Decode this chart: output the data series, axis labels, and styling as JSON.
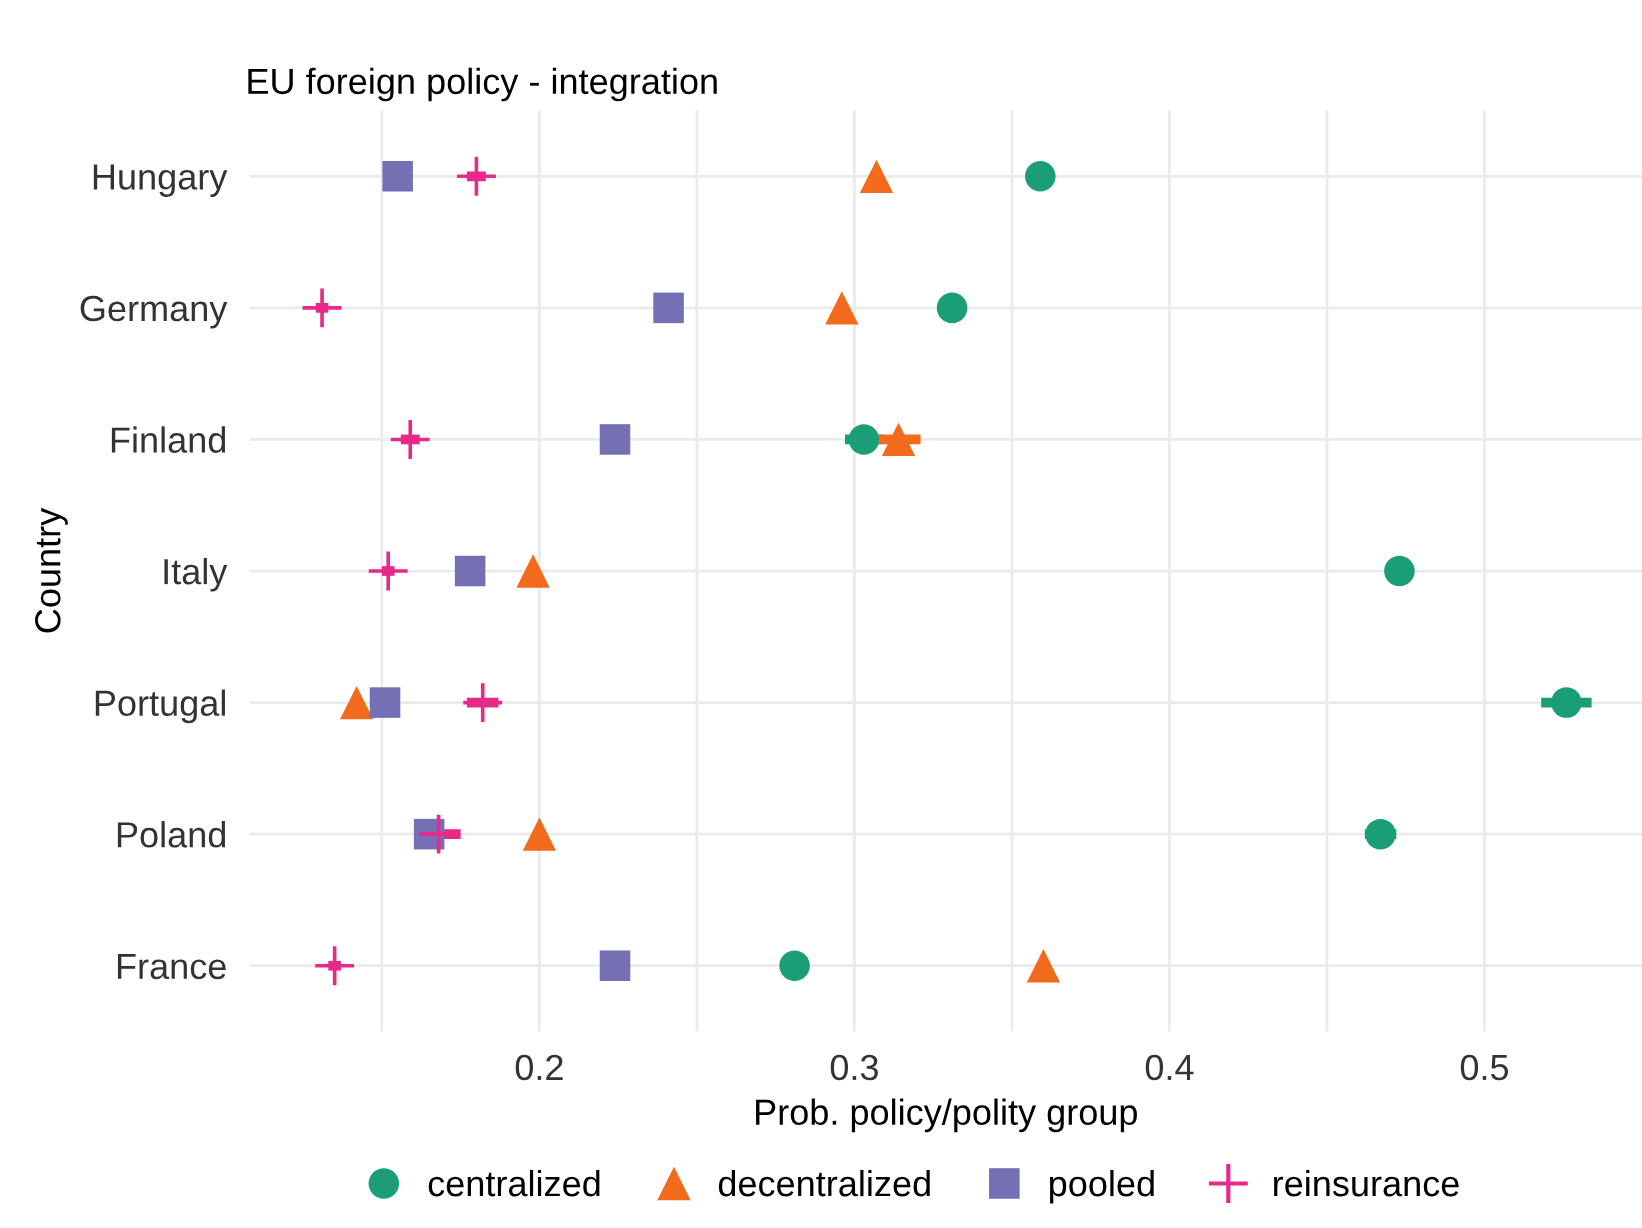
{
  "chart_data": {
    "type": "scatter",
    "title": "EU foreign policy - integration",
    "xlabel": "Prob. policy/polity group",
    "ylabel": "Country",
    "orientation": "horizontal",
    "categories": [
      "Hungary",
      "Germany",
      "Finland",
      "Italy",
      "Portugal",
      "Poland",
      "France"
    ],
    "series": [
      {
        "name": "centralized",
        "color": "#1b9e77",
        "marker": "circle",
        "values": [
          0.359,
          0.331,
          0.303,
          0.473,
          0.526,
          0.467,
          0.281
        ],
        "errors": [
          null,
          null,
          0.006,
          0.004,
          0.008,
          0.005,
          null
        ]
      },
      {
        "name": "decentralized",
        "color": "#f26b1d",
        "marker": "triangle",
        "values": [
          0.307,
          0.296,
          0.314,
          0.198,
          0.142,
          0.2,
          0.36
        ],
        "errors": [
          null,
          null,
          0.007,
          null,
          null,
          null,
          null
        ]
      },
      {
        "name": "pooled",
        "color": "#7570b3",
        "marker": "square",
        "values": [
          0.155,
          0.241,
          0.224,
          0.178,
          0.151,
          0.165,
          0.224
        ],
        "errors": [
          null,
          null,
          null,
          null,
          null,
          null,
          null
        ]
      },
      {
        "name": "reinsurance",
        "color": "#e7298a",
        "marker": "cross",
        "values": [
          0.18,
          0.131,
          0.159,
          0.152,
          0.182,
          0.168,
          0.135
        ],
        "errors": [
          0.003,
          0.002,
          0.003,
          0.002,
          0.005,
          0.007,
          0.002
        ]
      }
    ],
    "xlim": [
      0.108,
      0.55
    ],
    "xticks": [
      {
        "value": 0.15,
        "label": null
      },
      0.2,
      {
        "value": 0.25,
        "label": null
      },
      0.3,
      {
        "value": 0.35,
        "label": null
      },
      0.4,
      {
        "value": 0.45,
        "label": null
      },
      0.5
    ],
    "grid": true,
    "legend": "bottom"
  }
}
